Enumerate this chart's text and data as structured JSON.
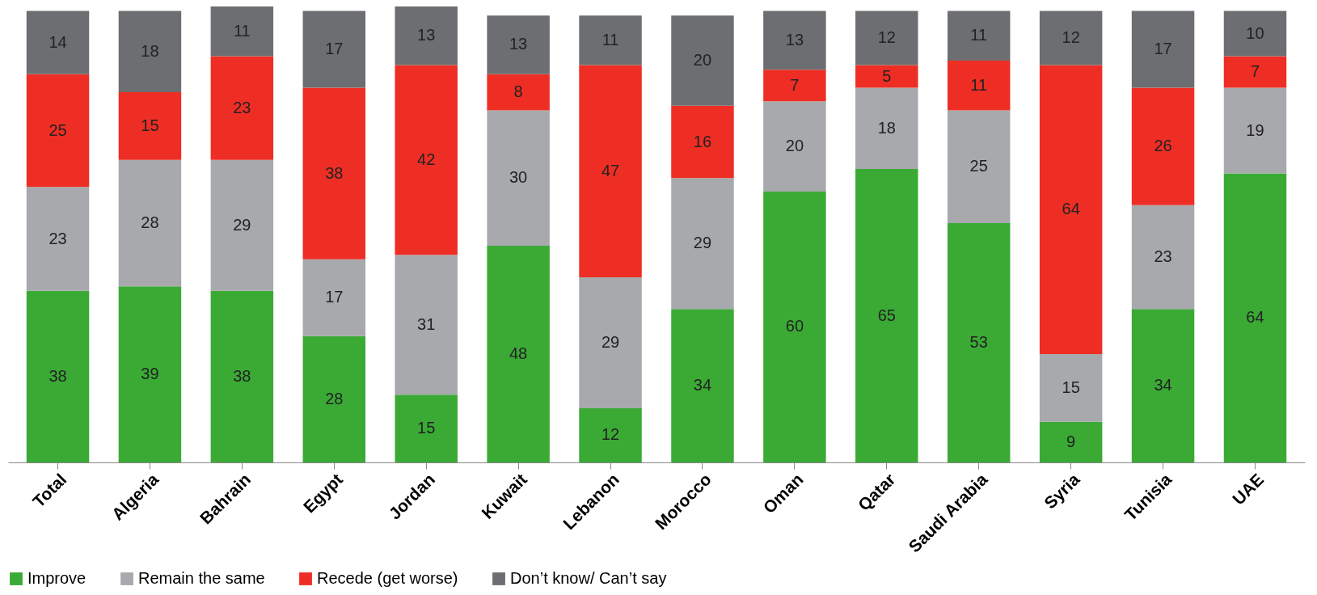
{
  "chart_data": {
    "type": "bar",
    "stacked": true,
    "data_labels": true,
    "legend": "bottom",
    "grid": false,
    "categories": [
      "Total",
      "Algeria",
      "Bahrain",
      "Egypt",
      "Jordan",
      "Kuwait",
      "Lebanon",
      "Morocco",
      "Oman",
      "Qatar",
      "Saudi Arabia",
      "Syria",
      "Tunisia",
      "UAE"
    ],
    "series": [
      {
        "name": "Improve",
        "color": "#3aaa35",
        "values": [
          38,
          39,
          38,
          28,
          15,
          48,
          12,
          34,
          60,
          65,
          53,
          9,
          34,
          64
        ]
      },
      {
        "name": "Remain the same",
        "color": "#a7a9ac",
        "values": [
          23,
          28,
          29,
          17,
          31,
          30,
          29,
          29,
          20,
          18,
          25,
          15,
          23,
          19
        ]
      },
      {
        "name": "Recede (get worse)",
        "color": "#ee2e24",
        "values": [
          25,
          15,
          23,
          38,
          42,
          8,
          47,
          16,
          7,
          5,
          11,
          64,
          26,
          7
        ]
      },
      {
        "name": "Don’t know/ Can’t say",
        "color": "#6d6e71",
        "values": [
          14,
          18,
          11,
          17,
          13,
          13,
          11,
          20,
          13,
          12,
          11,
          12,
          17,
          10
        ]
      }
    ]
  }
}
